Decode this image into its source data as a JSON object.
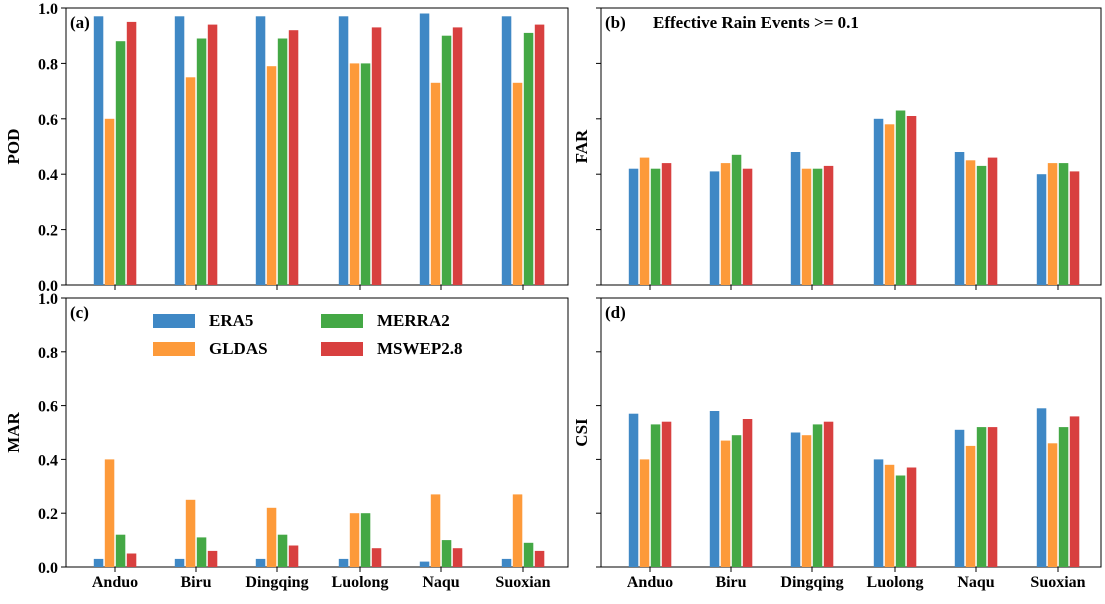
{
  "chart_data": {
    "type": "bar",
    "categories": [
      "Anduo",
      "Biru",
      "Dingqing",
      "Luolong",
      "Naqu",
      "Suoxian"
    ],
    "series_names": [
      "ERA5",
      "GLDAS",
      "MERRA2",
      "MSWEP2.8"
    ],
    "series_colors": [
      "#3f88c5",
      "#fd9a3a",
      "#44a845",
      "#d8403f"
    ],
    "legend": {
      "panel": "c",
      "placement": "upper-center",
      "entries": [
        {
          "label": "ERA5",
          "color": "#3f88c5"
        },
        {
          "label": "MERRA2",
          "color": "#44a845"
        },
        {
          "label": "GLDAS",
          "color": "#fd9a3a"
        },
        {
          "label": "MSWEP2.8",
          "color": "#d8403f"
        }
      ]
    },
    "panels": [
      {
        "id": "a",
        "tag": "(a)",
        "title": "",
        "ylabel": "POD",
        "ylim": [
          0,
          1.0
        ],
        "yticks": [
          "0.0",
          "0.2",
          "0.4",
          "0.6",
          "0.8",
          "1.0"
        ],
        "show_yticklabels": true,
        "show_xticklabels": false,
        "series": [
          {
            "name": "ERA5",
            "values": [
              0.97,
              0.97,
              0.97,
              0.97,
              0.98,
              0.97
            ]
          },
          {
            "name": "GLDAS",
            "values": [
              0.6,
              0.75,
              0.79,
              0.8,
              0.73,
              0.73
            ]
          },
          {
            "name": "MERRA2",
            "values": [
              0.88,
              0.89,
              0.89,
              0.8,
              0.9,
              0.91
            ]
          },
          {
            "name": "MSWEP2.8",
            "values": [
              0.95,
              0.94,
              0.92,
              0.93,
              0.93,
              0.94
            ]
          }
        ]
      },
      {
        "id": "b",
        "tag": "(b)",
        "title": "Effective Rain Events >= 0.1",
        "ylabel": "FAR",
        "ylim": [
          0,
          1.0
        ],
        "yticks": [
          "",
          "",
          "",
          "",
          "",
          ""
        ],
        "show_yticklabels": false,
        "show_xticklabels": false,
        "series": [
          {
            "name": "ERA5",
            "values": [
              0.42,
              0.41,
              0.48,
              0.6,
              0.48,
              0.4
            ]
          },
          {
            "name": "GLDAS",
            "values": [
              0.46,
              0.44,
              0.42,
              0.58,
              0.45,
              0.44
            ]
          },
          {
            "name": "MERRA2",
            "values": [
              0.42,
              0.47,
              0.42,
              0.63,
              0.43,
              0.44
            ]
          },
          {
            "name": "MSWEP2.8",
            "values": [
              0.44,
              0.42,
              0.43,
              0.61,
              0.46,
              0.41
            ]
          }
        ]
      },
      {
        "id": "c",
        "tag": "(c)",
        "title": "",
        "ylabel": "MAR",
        "ylim": [
          0,
          1.0
        ],
        "yticks": [
          "0.0",
          "0.2",
          "0.4",
          "0.6",
          "0.8",
          "1.0"
        ],
        "show_yticklabels": true,
        "show_xticklabels": true,
        "series": [
          {
            "name": "ERA5",
            "values": [
              0.03,
              0.03,
              0.03,
              0.03,
              0.02,
              0.03
            ]
          },
          {
            "name": "GLDAS",
            "values": [
              0.4,
              0.25,
              0.22,
              0.2,
              0.27,
              0.27
            ]
          },
          {
            "name": "MERRA2",
            "values": [
              0.12,
              0.11,
              0.12,
              0.2,
              0.1,
              0.09
            ]
          },
          {
            "name": "MSWEP2.8",
            "values": [
              0.05,
              0.06,
              0.08,
              0.07,
              0.07,
              0.06
            ]
          }
        ]
      },
      {
        "id": "d",
        "tag": "(d)",
        "title": "",
        "ylabel": "CSI",
        "ylim": [
          0,
          1.0
        ],
        "yticks": [
          "",
          "",
          "",
          "",
          "",
          ""
        ],
        "show_yticklabels": false,
        "show_xticklabels": true,
        "series": [
          {
            "name": "ERA5",
            "values": [
              0.57,
              0.58,
              0.5,
              0.4,
              0.51,
              0.59
            ]
          },
          {
            "name": "GLDAS",
            "values": [
              0.4,
              0.47,
              0.49,
              0.38,
              0.45,
              0.46
            ]
          },
          {
            "name": "MERRA2",
            "values": [
              0.53,
              0.49,
              0.53,
              0.34,
              0.52,
              0.52
            ]
          },
          {
            "name": "MSWEP2.8",
            "values": [
              0.54,
              0.55,
              0.54,
              0.37,
              0.52,
              0.56
            ]
          }
        ]
      }
    ]
  }
}
